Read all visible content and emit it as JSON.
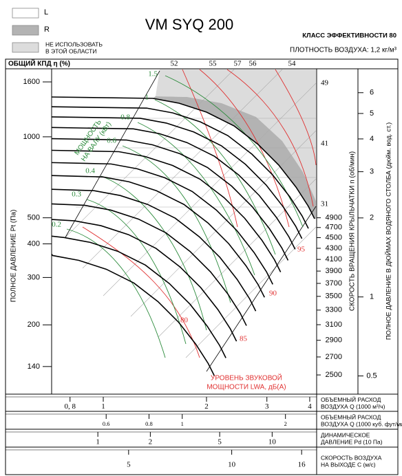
{
  "chart_data": {
    "type": "fan-performance",
    "title": "VM SYQ 200",
    "efficiency_class": "КЛАСС ЭФФЕКТИВНОСТИ 80",
    "air_density": "ПЛОТНОСТЬ ВОЗДУХА: 1,2 кг/м³",
    "zones": [
      {
        "label": [
          "L"
        ],
        "color": "#ffffff"
      },
      {
        "label": [
          "R"
        ],
        "color": "#b3b3b3"
      },
      {
        "label": [
          "НЕ ИСПОЛЬЗОВАТЬ",
          "В ЭТОЙ ОБЛАСТИ"
        ],
        "color": "#dcdcdc"
      }
    ],
    "efficiency_label": "ОБЩИЙ КПД η (%)",
    "efficiency_ticks": [
      52,
      55,
      57,
      56,
      54
    ],
    "efficiency_side_labels": [
      49,
      41,
      31
    ],
    "ylabel": "ПОЛНОЕ ДАВЛЕНИЕ Pt (Па)",
    "ylog": true,
    "ylim": [
      112.5,
      1790
    ],
    "yticks": [
      140,
      200,
      300,
      400,
      500,
      1000,
      1600
    ],
    "y2label": "ПОЛНОЕ ДАВЛЕНИЕ В ДЮЙМАХ ВОДЯНОГО СТОЛБА (дюйм. вод. ст.)",
    "y2lim": [
      0.434,
      7.4
    ],
    "y2ticks": [
      0.5,
      1,
      2,
      3,
      4,
      5,
      6
    ],
    "y3label": "СКОРОСТЬ ВРАЩЕНИЯ КРЫЛЬЧАТКИ n (об/мин)",
    "y3lim": [
      2323,
      9274
    ],
    "y3ticks": [
      2500,
      2700,
      2900,
      3100,
      3300,
      3500,
      3700,
      3900,
      4100,
      4300,
      4500,
      4700,
      4900
    ],
    "power_label": [
      "МОЩНОСТЬ",
      "НА ВАЛУ (кВт)"
    ],
    "power_values": [
      1.5,
      1,
      0.8,
      0.6,
      0.4,
      0.3,
      0.2
    ],
    "power_color": "#2a8a3a",
    "noise_label": [
      "УРОВЕНЬ ЗВУКОВОЙ",
      "МОЩНОСТИ LWA, дБ(А)"
    ],
    "noise_values": [
      80,
      85,
      90,
      95
    ],
    "noise_color": "#e03030",
    "x_scales": [
      {
        "label": [
          "ОБЪЕМНЫЙ РАСХОД",
          "ВОЗДУХА Q (1000 м³/ч)"
        ],
        "lim": [
          0.707,
          4.19
        ],
        "ticks": [
          {
            "value": 0.8,
            "label": "0, 8"
          },
          1,
          2,
          3,
          4
        ]
      },
      {
        "label": [
          "ОБЪЕМНЫЙ РАСХОД",
          "ВОЗДУХА Q (1000 куб. фут/мин)"
        ],
        "lim": [
          0.416,
          2.466
        ],
        "ticks": [
          0.6,
          0.8,
          1,
          2
        ]
      },
      {
        "label": [
          "ДИНАМИЧЕСКОЕ",
          "ДАВЛЕНИЕ Pd (10 Па)"
        ],
        "lim": [
          0.543,
          18.0
        ],
        "ticks": [
          1,
          2,
          5,
          10
        ]
      },
      {
        "label": [
          "СКОРОСТЬ ВОЗДУХА",
          "НА ВЫХОДЕ C (м/с)"
        ],
        "lim": [
          2.98,
          17.7
        ],
        "ticks": [
          5,
          10,
          16
        ]
      }
    ]
  }
}
